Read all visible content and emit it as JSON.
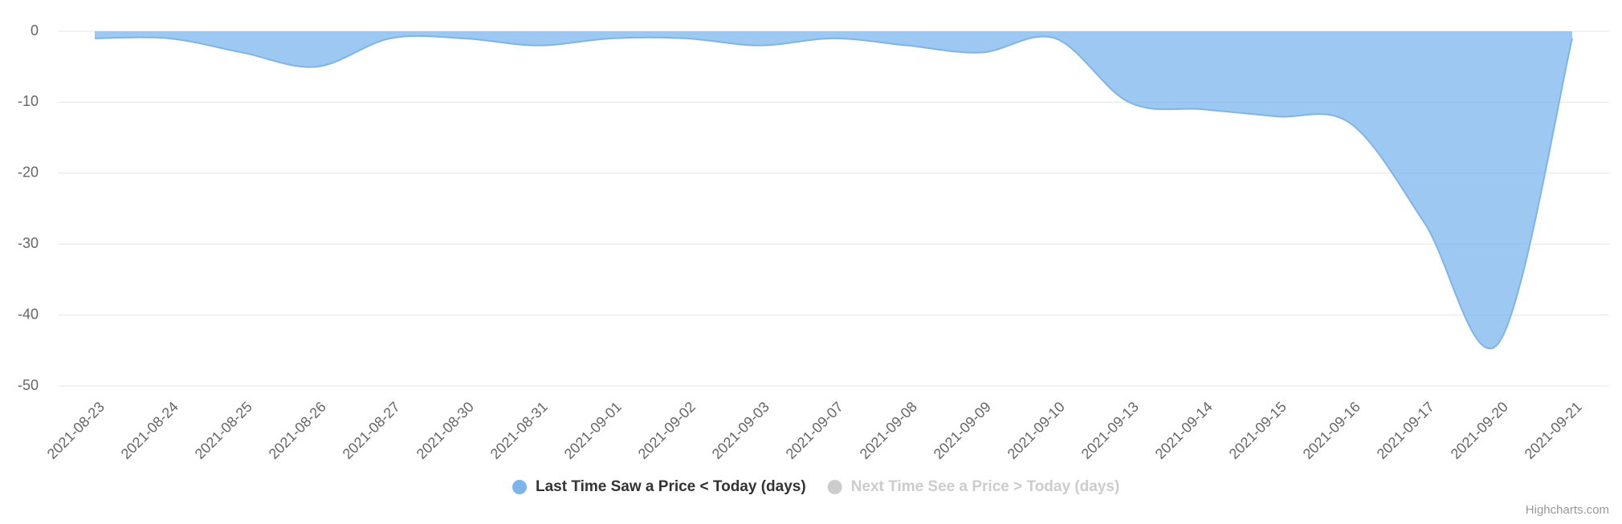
{
  "chart_data": {
    "type": "areaspline",
    "categories": [
      "2021-08-23",
      "2021-08-24",
      "2021-08-25",
      "2021-08-26",
      "2021-08-27",
      "2021-08-30",
      "2021-08-31",
      "2021-09-01",
      "2021-09-02",
      "2021-09-03",
      "2021-09-07",
      "2021-09-08",
      "2021-09-09",
      "2021-09-10",
      "2021-09-13",
      "2021-09-14",
      "2021-09-15",
      "2021-09-16",
      "2021-09-17",
      "2021-09-20",
      "2021-09-21"
    ],
    "series": [
      {
        "name": "Last Time Saw a Price < Today (days)",
        "color": "#7cb5ec",
        "visible": true,
        "values": [
          -1,
          -1,
          -3,
          -5,
          -1,
          -1,
          -2,
          -1,
          -1,
          -2,
          -1,
          -2,
          -3,
          -1,
          -10,
          -11,
          -12,
          -13,
          -27,
          -44,
          -1
        ]
      },
      {
        "name": "Next Time See a Price > Today (days)",
        "color": "#cccccc",
        "visible": false,
        "values": [
          null,
          null,
          null,
          null,
          null,
          null,
          null,
          null,
          null,
          null,
          null,
          null,
          null,
          null,
          null,
          null,
          null,
          null,
          null,
          null,
          null
        ]
      }
    ],
    "ylim": [
      -50,
      0
    ],
    "yticks": [
      0,
      -10,
      -20,
      -30,
      -40,
      -50
    ],
    "grid": true,
    "credits": "Highcharts.com"
  }
}
